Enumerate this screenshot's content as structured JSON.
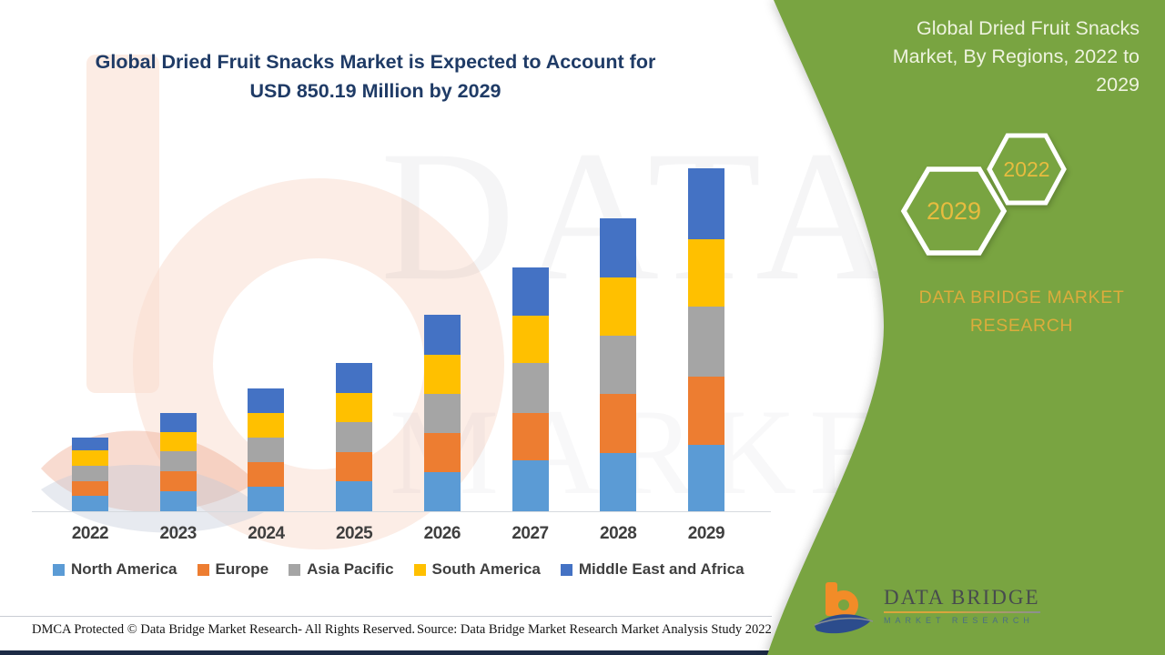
{
  "header": {
    "title_line1": "Global Dried Fruit Snacks Market is Expected to Account for",
    "title_line2": "USD 850.19 Million by 2029"
  },
  "side_panel": {
    "title_lines": [
      "Global Dried Fruit Snacks",
      "Market, By Regions, 2022 to",
      "2029"
    ],
    "hexagons": [
      {
        "label": "2029"
      },
      {
        "label": "2022"
      }
    ],
    "brand_line1": "DATA BRIDGE MARKET",
    "brand_line2": "RESEARCH",
    "colors": {
      "panel_green": "#79A441",
      "gold": "#E7BC3F"
    }
  },
  "watermark": {
    "line1": "DATA BRIDGE",
    "line2": "MARKET RESEARCH"
  },
  "logo": {
    "name": "DATA BRIDGE",
    "subtitle": "MARKET RESEARCH"
  },
  "footer": {
    "left": "DMCA Protected © Data Bridge Market Research- All Rights Reserved.",
    "right": "Source: Data Bridge Market Research Market Analysis Study 2022"
  },
  "chart_data": {
    "type": "bar",
    "stacked": true,
    "title": "Global Dried Fruit Snacks Market, By Regions, 2022 to 2029",
    "unit": "USD Million",
    "categories": [
      "2022",
      "2023",
      "2024",
      "2025",
      "2026",
      "2027",
      "2028",
      "2029"
    ],
    "series": [
      {
        "name": "North America",
        "color": "#5B9BD5",
        "values": [
          38,
          50,
          61,
          74,
          97,
          126,
          145,
          165
        ]
      },
      {
        "name": "Europe",
        "color": "#ED7D31",
        "values": [
          36,
          50,
          61,
          73,
          96,
          117,
          145,
          169
        ]
      },
      {
        "name": "Asia Pacific",
        "color": "#A5A5A5",
        "values": [
          38,
          49,
          61,
          74,
          97,
          124,
          145,
          173
        ]
      },
      {
        "name": "South America",
        "color": "#FFC000",
        "values": [
          38,
          48,
          61,
          73,
          97,
          117,
          145,
          167
        ]
      },
      {
        "name": "Middle East and Africa",
        "color": "#4472C4",
        "values": [
          32,
          47,
          62,
          74,
          100,
          120,
          146,
          176.19
        ]
      }
    ],
    "totals_estimated": [
      182,
      244,
      306,
      368,
      487,
      604,
      726,
      850.19
    ],
    "highlight_total_2029": 850.19,
    "legend_position": "bottom",
    "gridlines": false,
    "value_axis_visible": false
  }
}
